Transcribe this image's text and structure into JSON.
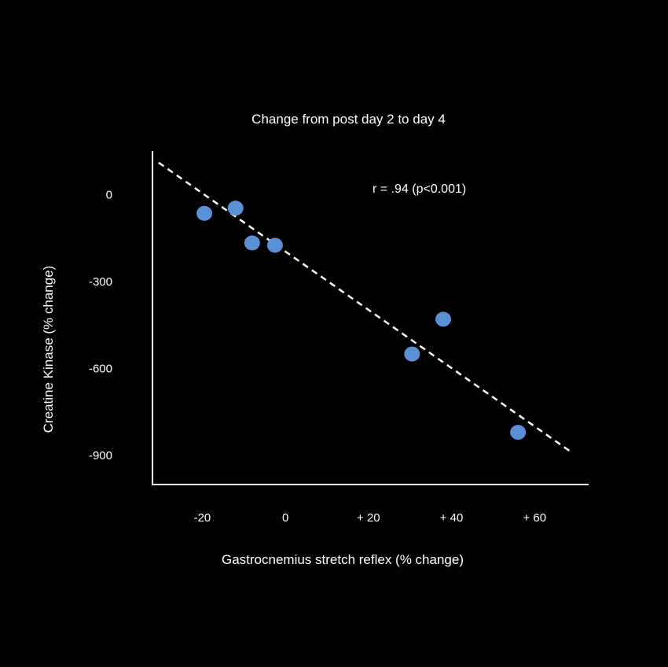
{
  "chart_data": {
    "type": "scatter",
    "title": "Change from post day 2 to day 4",
    "xlabel": "Gastrocnemius stretch reflex (% change)",
    "ylabel": "Creatine Kinase (% change)",
    "annotation": "r = .94 (p<0.001)",
    "xlim": [
      -32,
      73
    ],
    "ylim": [
      -1000,
      150
    ],
    "x_ticks": [
      -20,
      0,
      20,
      40,
      60
    ],
    "x_tick_labels": [
      "-20",
      "0",
      "+ 20",
      "+ 40",
      "+ 60"
    ],
    "y_ticks": [
      0,
      -300,
      -600,
      -900
    ],
    "y_tick_labels": [
      "0",
      "-300",
      "-600",
      "-900"
    ],
    "points": [
      {
        "x": -19.5,
        "y": -65
      },
      {
        "x": -12,
        "y": -47
      },
      {
        "x": -8,
        "y": -167
      },
      {
        "x": -2.5,
        "y": -175
      },
      {
        "x": 38,
        "y": -430
      },
      {
        "x": 30.5,
        "y": -550
      },
      {
        "x": 56,
        "y": -820
      }
    ],
    "trendline": {
      "x": [
        -30.5,
        69
      ],
      "y": [
        110,
        -890
      ],
      "style": "dashed"
    },
    "grid": false,
    "colors": {
      "background": "#000000",
      "point": "#5B8FD6",
      "axis": "#FFFFFF",
      "trendline": "#FFFFFF"
    }
  }
}
